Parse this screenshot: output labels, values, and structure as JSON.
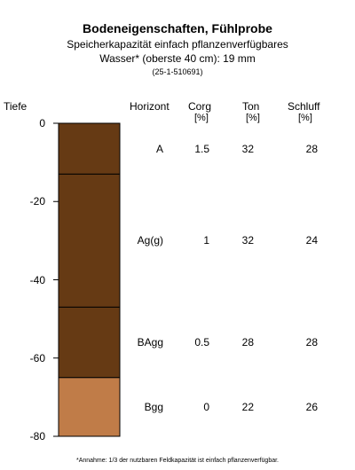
{
  "header": {
    "title": "Bodeneigenschaften, Fühlprobe",
    "subtitle_line1": "Speicherkapazität einfach pflanzenverfügbares",
    "subtitle_line2": "Wasser* (oberste 40 cm): 19 mm",
    "sample_id": "(25-1-510691)"
  },
  "columns": {
    "depth": "Tiefe",
    "horizon": "Horizont",
    "corg": "Corg",
    "corg_unit": "[%]",
    "ton": "Ton",
    "ton_unit": "[%]",
    "schluff": "Schluff",
    "schluff_unit": "[%]"
  },
  "chart_data": {
    "type": "table",
    "y_axis": {
      "label": "Tiefe",
      "ticks": [
        0,
        -20,
        -40,
        -60,
        -80
      ],
      "ylim": [
        -80,
        0
      ]
    },
    "layers": [
      {
        "horizon": "A",
        "top": 0,
        "bottom": -13,
        "corg": "1.5",
        "ton": "32",
        "schluff": "28",
        "color": "#663a14"
      },
      {
        "horizon": "Ag(g)",
        "top": -13,
        "bottom": -47,
        "corg": "1",
        "ton": "32",
        "schluff": "24",
        "color": "#663a14"
      },
      {
        "horizon": "BAgg",
        "top": -47,
        "bottom": -65,
        "corg": "0.5",
        "ton": "28",
        "schluff": "28",
        "color": "#663a14"
      },
      {
        "horizon": "Bgg",
        "top": -65,
        "bottom": -80,
        "corg": "0",
        "ton": "22",
        "schluff": "26",
        "color": "#c07c48"
      }
    ]
  },
  "footnote": "*Annahme: 1/3 der nutzbaren Feldkapazität ist einfach pflanzenverfügbar."
}
